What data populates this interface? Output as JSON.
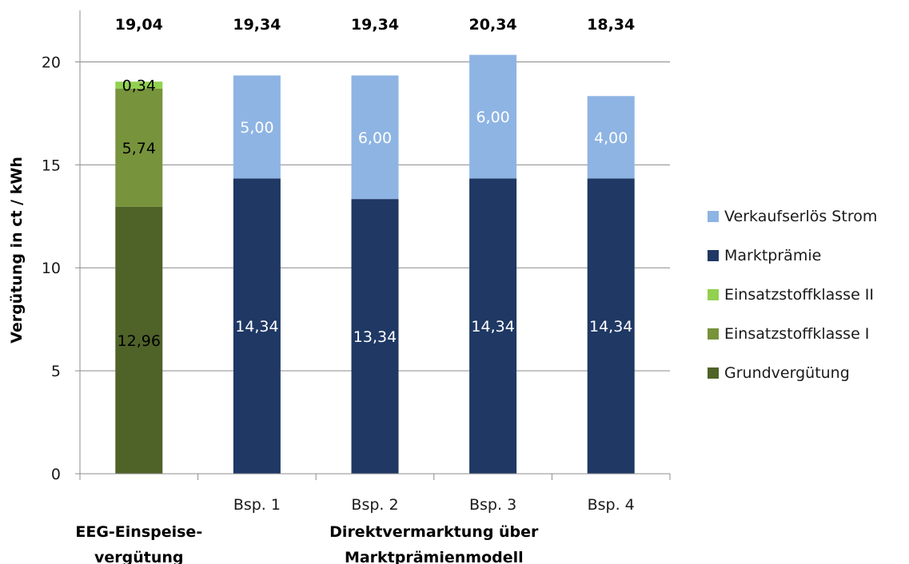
{
  "chart_data": {
    "type": "bar",
    "stacked": true,
    "ylabel": "Vergütung in ct / kWh",
    "ylim": [
      0,
      22.5
    ],
    "yticks": [
      0,
      5,
      10,
      15,
      20
    ],
    "grid": true,
    "legend_position": "right",
    "categories": [
      "",
      "Bsp. 1",
      "Bsp. 2",
      "Bsp. 3",
      "Bsp. 4"
    ],
    "group_labels": [
      {
        "lines": [
          "EEG-Einspeise-",
          "vergütung"
        ],
        "categories": [
          0
        ]
      },
      {
        "lines": [
          "Direktvermarktung über",
          "Marktprämienmodell"
        ],
        "categories": [
          1,
          2,
          3,
          4
        ]
      }
    ],
    "totals": [
      "19,04",
      "19,34",
      "19,34",
      "20,34",
      "18,34"
    ],
    "series": [
      {
        "name": "Grundvergütung",
        "color": "#4f6228",
        "label_color": "#000000",
        "values": [
          12.96,
          0,
          0,
          0,
          0
        ],
        "labels": [
          "12,96",
          "",
          "",
          "",
          ""
        ]
      },
      {
        "name": "Einsatzstoffklasse I",
        "color": "#77933c",
        "label_color": "#000000",
        "values": [
          5.74,
          0,
          0,
          0,
          0
        ],
        "labels": [
          "5,74",
          "",
          "",
          "",
          ""
        ]
      },
      {
        "name": "Einsatzstoffklasse II",
        "color": "#92d050",
        "label_color": "#000000",
        "values": [
          0.34,
          0,
          0,
          0,
          0
        ],
        "labels": [
          "0,34",
          "",
          "",
          "",
          ""
        ]
      },
      {
        "name": "Marktprämie",
        "color": "#1f3864",
        "label_color": "#ffffff",
        "values": [
          0,
          14.34,
          13.34,
          14.34,
          14.34
        ],
        "labels": [
          "",
          "14,34",
          "13,34",
          "14,34",
          "14,34"
        ]
      },
      {
        "name": "Verkaufserlös Strom",
        "color": "#8eb4e3",
        "label_color": "#ffffff",
        "values": [
          0,
          5.0,
          6.0,
          6.0,
          4.0
        ],
        "labels": [
          "",
          "5,00",
          "6,00",
          "6,00",
          "4,00"
        ]
      }
    ],
    "legend_order": [
      "Verkaufserlös Strom",
      "Marktprämie",
      "Einsatzstoffklasse II",
      "Einsatzstoffklasse I",
      "Grundvergütung"
    ]
  }
}
